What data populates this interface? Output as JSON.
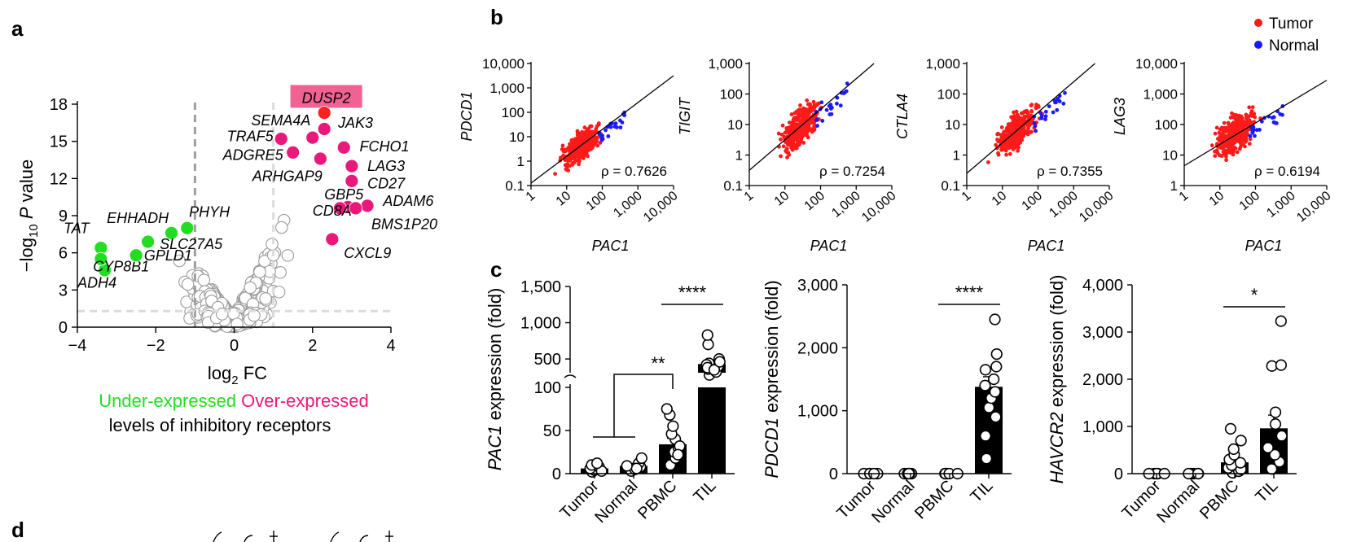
{
  "panel_labels": [
    "a",
    "b",
    "c",
    "d"
  ],
  "chart_data": [
    {
      "panel": "a",
      "type": "scatter",
      "subtype": "volcano",
      "xlabel": "log2 FC",
      "ylabel": "−log10 P value",
      "xlim": [
        -4,
        4
      ],
      "ylim": [
        0,
        18
      ],
      "xticks": [
        "−4",
        "−2",
        "0",
        "2",
        "4"
      ],
      "yticks": [
        "0",
        "3",
        "6",
        "9",
        "12",
        "15",
        "18"
      ],
      "thresholds": {
        "fc": [
          -1,
          1
        ],
        "p_log": 1.3
      },
      "colors": {
        "under": "#22dd22",
        "over": "#e8197a",
        "background": "#9a9a9a",
        "highlight_box": "#f06292"
      },
      "under_expressed": [
        {
          "gene": "TAT",
          "x": -3.4,
          "y": 6.4
        },
        {
          "gene": "ADH4",
          "x": -3.3,
          "y": 4.6
        },
        {
          "gene": "CYP8B1",
          "x": -3.4,
          "y": 5.5
        },
        {
          "gene": "GPLD1",
          "x": -2.5,
          "y": 5.8
        },
        {
          "gene": "EHHADH",
          "x": -2.2,
          "y": 6.9
        },
        {
          "gene": "SLC27A5",
          "x": -1.6,
          "y": 7.6
        },
        {
          "gene": "PHYH",
          "x": -1.2,
          "y": 8.0
        }
      ],
      "over_expressed": [
        {
          "gene": "DUSP2",
          "x": 2.3,
          "y": 17.3
        },
        {
          "gene": "JAK3",
          "x": 2.3,
          "y": 16.0
        },
        {
          "gene": "SEMA4A",
          "x": 2.0,
          "y": 15.3
        },
        {
          "gene": "TRAF5",
          "x": 1.2,
          "y": 15.2
        },
        {
          "gene": "ADGRE5",
          "x": 1.5,
          "y": 14.1
        },
        {
          "gene": "FCHO1",
          "x": 2.8,
          "y": 14.5
        },
        {
          "gene": "ARHGAP9",
          "x": 2.2,
          "y": 13.6
        },
        {
          "gene": "LAG3",
          "x": 3.0,
          "y": 13.0
        },
        {
          "gene": "CD27",
          "x": 3.0,
          "y": 11.8
        },
        {
          "gene": "GBP5",
          "x": 2.9,
          "y": 9.7
        },
        {
          "gene": "CD8A",
          "x": 2.7,
          "y": 9.6
        },
        {
          "gene": "ADAM6",
          "x": 3.4,
          "y": 9.8
        },
        {
          "gene": "BMS1P20",
          "x": 3.1,
          "y": 9.6
        },
        {
          "gene": "CXCL9",
          "x": 2.5,
          "y": 7.1
        }
      ],
      "legend": {
        "under": "Under-expressed",
        "over": "Over-expressed",
        "caption": "levels of inhibitory receptors"
      }
    },
    {
      "panel": "b",
      "type": "scatter",
      "scale": "log",
      "legend": [
        {
          "name": "Tumor",
          "color": "#ff1a1a"
        },
        {
          "name": "Normal",
          "color": "#1a1aff"
        }
      ],
      "legend_position": "top-right",
      "xlabel": "PAC1",
      "xticks": [
        "1",
        "10",
        "100",
        "1,000",
        "10,000"
      ],
      "subplots": [
        {
          "gene": "PDCD1",
          "rho": "ρ = 0.7626",
          "yticks": [
            "0.1",
            "1",
            "10",
            "100",
            "1,000",
            "10,000"
          ],
          "ylog": [
            -1,
            4
          ],
          "fit": {
            "slope": 1.1,
            "intercept": -0.9
          }
        },
        {
          "gene": "TIGIT",
          "rho": "ρ = 0.7254",
          "yticks": [
            "0.1",
            "1",
            "10",
            "100",
            "1,000"
          ],
          "ylog": [
            -1,
            3
          ],
          "fit": {
            "slope": 1.0,
            "intercept": -0.5
          }
        },
        {
          "gene": "CTLA4",
          "rho": "ρ = 0.7355",
          "yticks": [
            "0.1",
            "1",
            "10",
            "100",
            "1,000"
          ],
          "ylog": [
            -1,
            3
          ],
          "fit": {
            "slope": 1.0,
            "intercept": -0.6
          }
        },
        {
          "gene": "LAG3",
          "rho": "ρ = 0.6194",
          "yticks": [
            "1",
            "10",
            "100",
            "1,000",
            "10,000"
          ],
          "ylog": [
            0,
            4
          ],
          "fit": {
            "slope": 0.7,
            "intercept": 0.65
          }
        }
      ]
    },
    {
      "panel": "c",
      "type": "bar",
      "categories": [
        "Tumor",
        "Normal",
        "PBMC",
        "TIL"
      ],
      "subplots": [
        {
          "gene": "PAC1",
          "ylabel_suffix": " expression (fold)",
          "broken_axis": true,
          "yticks_upper": [
            "500",
            "1,000",
            "1,500"
          ],
          "yticks_lower": [
            "0",
            "50",
            "100"
          ],
          "values": [
            6,
            9,
            34,
            430
          ],
          "sem": [
            2,
            3,
            7,
            40
          ],
          "points": [
            [
              2,
              4,
              6,
              8,
              10,
              3,
              12
            ],
            [
              3,
              5,
              8,
              12,
              18,
              6,
              9
            ],
            [
              10,
              18,
              25,
              30,
              40,
              46,
              55,
              68,
              75,
              32,
              22
            ],
            [
              280,
              320,
              360,
              400,
              440,
              420,
              500,
              380,
              350,
              460,
              700,
              830
            ]
          ],
          "significance": [
            {
              "label": "**",
              "groups": "Tumor+Normal vs PBMC"
            },
            {
              "label": "****",
              "groups": "PBMC vs TIL"
            }
          ]
        },
        {
          "gene": "PDCD1",
          "ylabel_suffix": " expression (fold)",
          "yticks": [
            "0",
            "1,000",
            "2,000",
            "3,000"
          ],
          "ylim": [
            0,
            3000
          ],
          "values": [
            0,
            0,
            0,
            1380
          ],
          "sem": [
            0,
            0,
            0,
            160
          ],
          "points": [
            [
              0,
              0,
              0,
              0,
              0
            ],
            [
              0,
              0,
              0,
              0,
              0,
              0
            ],
            [
              0,
              0,
              0,
              0,
              0
            ],
            [
              240,
              600,
              900,
              1050,
              1200,
              1300,
              1400,
              1500,
              1650,
              1700,
              1900,
              2450
            ]
          ],
          "significance": [
            {
              "label": "****",
              "groups": "PBMC vs TIL"
            }
          ]
        },
        {
          "gene": "HAVCR2",
          "ylabel_suffix": " expression (fold)",
          "yticks": [
            "0",
            "1,000",
            "2,000",
            "3,000",
            "4,000"
          ],
          "ylim": [
            0,
            4000
          ],
          "values": [
            0,
            0,
            240,
            960
          ],
          "sem": [
            0,
            0,
            80,
            280
          ],
          "points": [
            [
              0,
              0,
              0,
              0,
              0
            ],
            [
              0,
              0,
              0,
              0,
              0
            ],
            [
              20,
              50,
              90,
              120,
              180,
              230,
              300,
              400,
              520,
              700,
              950
            ],
            [
              100,
              250,
              400,
              550,
              800,
              1050,
              1300,
              2280,
              2300,
              3230
            ]
          ],
          "significance": [
            {
              "label": "*",
              "groups": "PBMC vs TIL"
            }
          ]
        }
      ]
    }
  ]
}
